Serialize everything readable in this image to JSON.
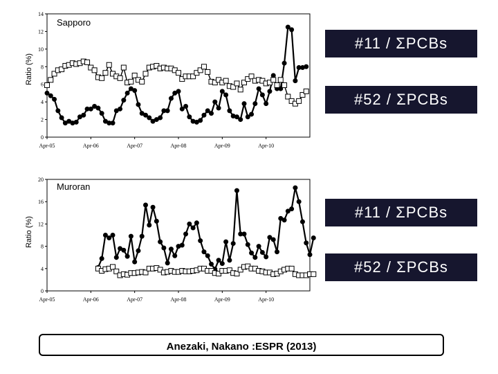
{
  "labels": {
    "sapporo_11": "#11 / ΣPCBs",
    "sapporo_52": "#52 / ΣPCBs",
    "muroran_11": "#11 / ΣPCBs",
    "muroran_52": "#52 / ΣPCBs"
  },
  "citation": "Anezaki, Nakano :ESPR (2013)",
  "chart_data": [
    {
      "type": "line",
      "title": "Sapporo",
      "ylabel": "Ratio (%)",
      "xlabel": "",
      "ylim": [
        0,
        14
      ],
      "yticks": [
        0,
        2,
        4,
        6,
        8,
        10,
        12,
        14
      ],
      "xlim": [
        0,
        72
      ],
      "xticks": [
        {
          "pos": 0,
          "label": "Apr-05"
        },
        {
          "pos": 12,
          "label": "Apr-06"
        },
        {
          "pos": 24,
          "label": "Apr-07"
        },
        {
          "pos": 36,
          "label": "Apr-08"
        },
        {
          "pos": 48,
          "label": "Apr-09"
        },
        {
          "pos": 60,
          "label": "Apr-10"
        }
      ],
      "series": [
        {
          "name": "#11 / ΣPCBs",
          "marker": "filled-circle",
          "x_start": 0,
          "values": [
            5.0,
            4.7,
            4.3,
            3.0,
            2.2,
            1.6,
            1.8,
            1.6,
            1.7,
            2.3,
            2.5,
            3.2,
            3.2,
            3.5,
            3.3,
            2.7,
            1.8,
            1.6,
            1.6,
            3.0,
            3.2,
            4.2,
            5.0,
            5.5,
            5.3,
            3.7,
            2.7,
            2.5,
            2.2,
            1.8,
            2.0,
            2.2,
            3.0,
            3.0,
            4.4,
            5.0,
            5.2,
            3.2,
            3.5,
            2.3,
            1.8,
            1.7,
            1.9,
            2.5,
            3.0,
            2.7,
            4.0,
            3.3,
            5.2,
            4.8,
            3.0,
            2.4,
            2.3,
            2.0,
            3.8,
            2.3,
            2.6,
            3.8,
            5.5,
            4.8,
            3.8,
            5.2,
            7.0,
            5.5,
            5.5,
            8.4,
            12.5,
            12.2,
            6.4,
            7.9,
            7.9,
            8.0
          ]
        },
        {
          "name": "#52 / ΣPCBs",
          "marker": "open-square",
          "x_start": 0,
          "values": [
            5.9,
            6.5,
            7.2,
            7.6,
            7.7,
            8.1,
            8.2,
            8.4,
            8.3,
            8.4,
            8.6,
            8.5,
            7.9,
            7.6,
            6.8,
            6.7,
            7.3,
            8.2,
            7.2,
            6.9,
            6.7,
            7.9,
            6.2,
            6.3,
            7.0,
            6.5,
            6.3,
            7.2,
            7.9,
            8.0,
            8.1,
            7.8,
            7.9,
            7.8,
            7.8,
            7.6,
            7.3,
            6.6,
            6.9,
            6.9,
            6.9,
            7.3,
            7.6,
            8.0,
            7.4,
            6.3,
            6.2,
            6.5,
            6.2,
            6.4,
            5.8,
            5.7,
            6.1,
            5.4,
            6.2,
            6.6,
            6.9,
            6.4,
            6.5,
            6.4,
            6.1,
            6.2,
            6.5,
            5.9,
            6.5,
            5.9,
            4.6,
            4.1,
            3.8,
            4.1,
            4.8,
            5.2
          ]
        }
      ]
    },
    {
      "type": "line",
      "title": "Muroran",
      "ylabel": "Ratio (%)",
      "xlabel": "",
      "ylim": [
        0,
        20
      ],
      "yticks": [
        0,
        4,
        8,
        12,
        16,
        20
      ],
      "xlim": [
        0,
        72
      ],
      "xticks": [
        {
          "pos": 0,
          "label": "Apr-05"
        },
        {
          "pos": 12,
          "label": "Apr-06"
        },
        {
          "pos": 24,
          "label": "Apr-07"
        },
        {
          "pos": 36,
          "label": "Apr-08"
        },
        {
          "pos": 48,
          "label": "Apr-09"
        },
        {
          "pos": 60,
          "label": "Apr-10"
        }
      ],
      "series": [
        {
          "name": "#11 / ΣPCBs",
          "marker": "filled-circle",
          "x_start": 14,
          "values": [
            4.2,
            5.8,
            10.0,
            9.5,
            10.0,
            6.0,
            7.6,
            7.3,
            6.2,
            9.8,
            5.2,
            7.2,
            9.8,
            15.4,
            11.8,
            15.0,
            12.5,
            8.8,
            7.7,
            5.0,
            7.5,
            6.3,
            8.0,
            8.2,
            10.2,
            12.0,
            11.3,
            12.2,
            9.0,
            7.0,
            6.3,
            4.8,
            3.9,
            5.5,
            4.9,
            8.8,
            5.5,
            8.5,
            18.0,
            10.2,
            10.2,
            8.3,
            6.8,
            6.0,
            8.0,
            6.9,
            6.1,
            9.6,
            9.2,
            7.0,
            13.0,
            12.7,
            14.3,
            14.7,
            18.5,
            16.0,
            12.4,
            8.6,
            6.5,
            9.5
          ]
        },
        {
          "name": "#52 / ΣPCBs",
          "marker": "open-square",
          "x_start": 14,
          "values": [
            4.0,
            3.6,
            3.9,
            4.0,
            4.3,
            3.5,
            2.8,
            3.0,
            2.9,
            3.2,
            3.2,
            3.3,
            3.4,
            3.3,
            4.0,
            4.0,
            4.1,
            3.8,
            3.3,
            3.4,
            3.6,
            3.4,
            3.4,
            3.6,
            3.5,
            3.5,
            3.6,
            3.7,
            4.0,
            4.0,
            3.6,
            3.6,
            3.2,
            3.1,
            3.6,
            3.6,
            3.7,
            3.2,
            3.1,
            3.8,
            4.3,
            4.4,
            4.0,
            4.0,
            3.6,
            3.5,
            3.3,
            3.3,
            3.0,
            3.1,
            3.5,
            3.8,
            4.0,
            4.0,
            3.0,
            2.8,
            2.8,
            2.8,
            3.0,
            3.0
          ]
        }
      ]
    }
  ]
}
